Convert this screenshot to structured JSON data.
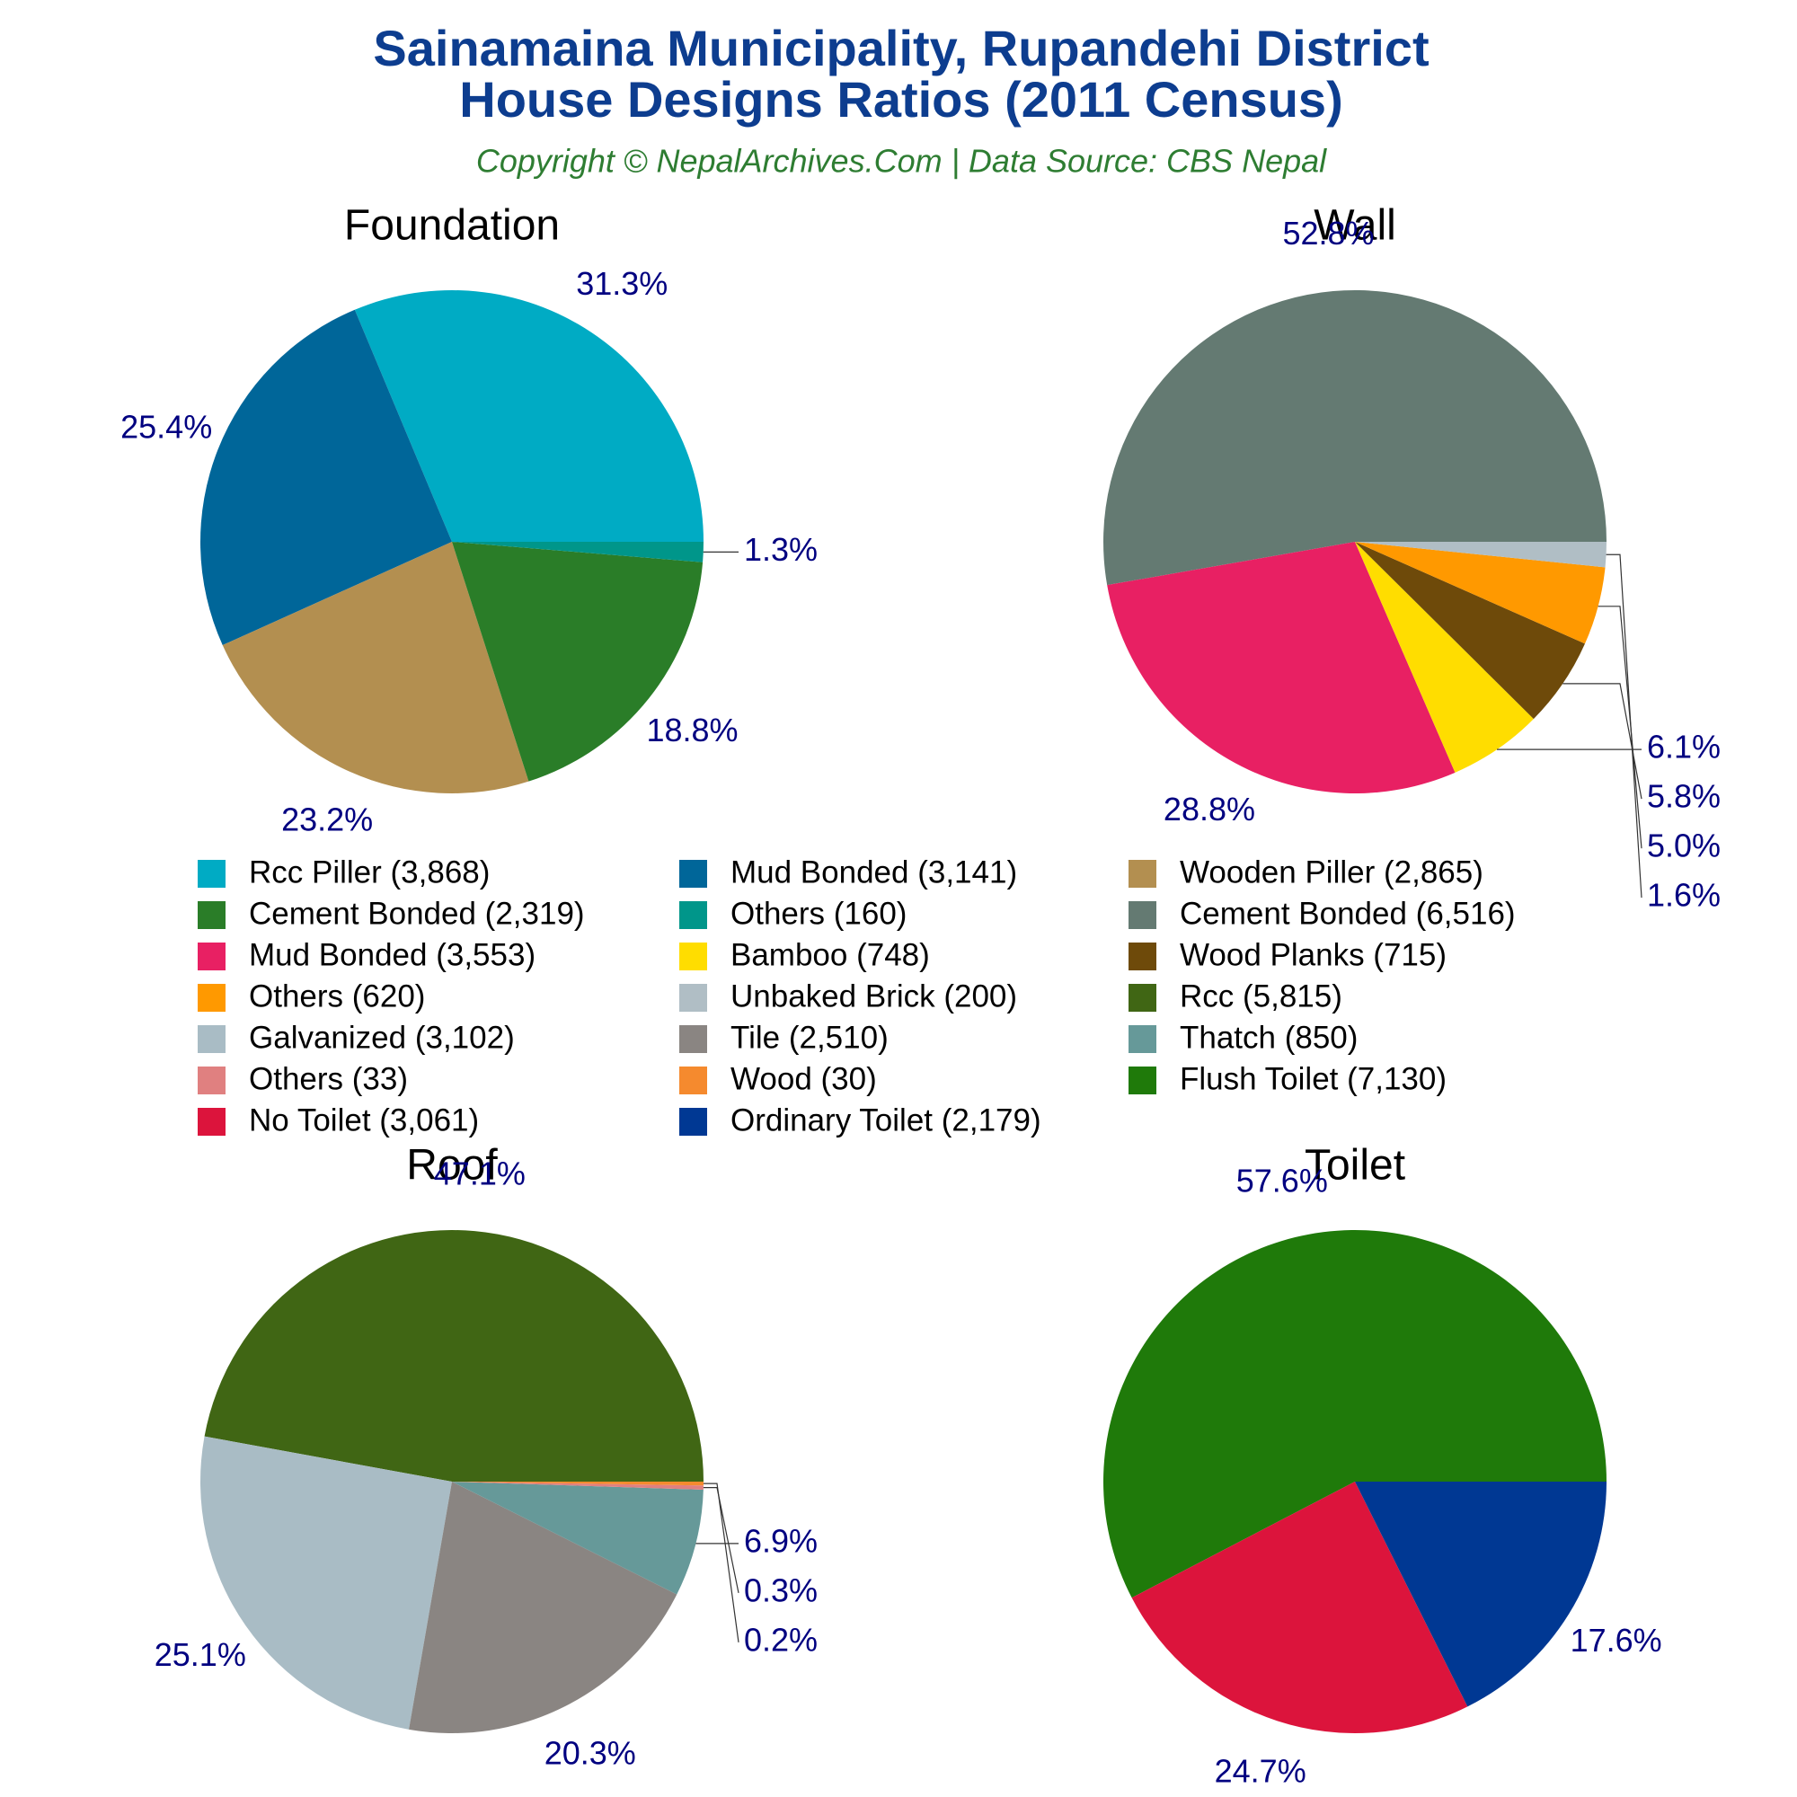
{
  "title": [
    "Sainamaina Municipality, Rupandehi District",
    "House Designs Ratios (2011 Census)"
  ],
  "subtitle": "Copyright © NepalArchives.Com | Data Source: CBS Nepal",
  "chart_data": [
    {
      "type": "pie",
      "title": "Foundation",
      "categories": [
        "Rcc Piller (3,868)",
        "Mud Bonded (3,141)",
        "Wooden Piller (2,865)",
        "Cement Bonded (2,319)",
        "Others (160)"
      ],
      "values": [
        3868,
        3141,
        2865,
        2319,
        160
      ],
      "value_labels": [
        "31.3%",
        "25.4%",
        "23.2%",
        "18.8%",
        "1.3%"
      ],
      "colors": [
        "#00abc4",
        "#006699",
        "#b38f50",
        "#2a7d28",
        "#00968a"
      ]
    },
    {
      "type": "pie",
      "title": "Wall",
      "categories": [
        "Cement Bonded (6,516)",
        "Mud Bonded (3,553)",
        "Bamboo (748)",
        "Wood Planks (715)",
        "Others (620)",
        "Unbaked Brick (200)"
      ],
      "values": [
        6516,
        3553,
        748,
        715,
        620,
        200
      ],
      "value_labels": [
        "52.8%",
        "28.8%",
        "6.1%",
        "5.8%",
        "5.0%",
        "1.6%"
      ],
      "colors": [
        "#647a72",
        "#e82063",
        "#ffdd00",
        "#6e4a0a",
        "#ff9900",
        "#b0bec5"
      ]
    },
    {
      "type": "pie",
      "title": "Roof",
      "categories": [
        "Rcc (5,815)",
        "Galvanized (3,102)",
        "Tile (2,510)",
        "Thatch (850)",
        "Others (33)",
        "Wood (30)"
      ],
      "values": [
        5815,
        3102,
        2510,
        850,
        33,
        30
      ],
      "value_labels": [
        "47.1%",
        "25.1%",
        "20.3%",
        "6.9%",
        "0.3%",
        "0.2%"
      ],
      "colors": [
        "#406614",
        "#a9bcc5",
        "#8a8582",
        "#669999",
        "#e08080",
        "#f58a2e"
      ]
    },
    {
      "type": "pie",
      "title": "Toilet",
      "categories": [
        "Flush Toilet (7,130)",
        "No Toilet (3,061)",
        "Ordinary Toilet (2,179)"
      ],
      "values": [
        7130,
        3061,
        2179
      ],
      "value_labels": [
        "57.6%",
        "24.7%",
        "17.6%"
      ],
      "colors": [
        "#1f7a0a",
        "#dc143c",
        "#003893"
      ]
    }
  ]
}
